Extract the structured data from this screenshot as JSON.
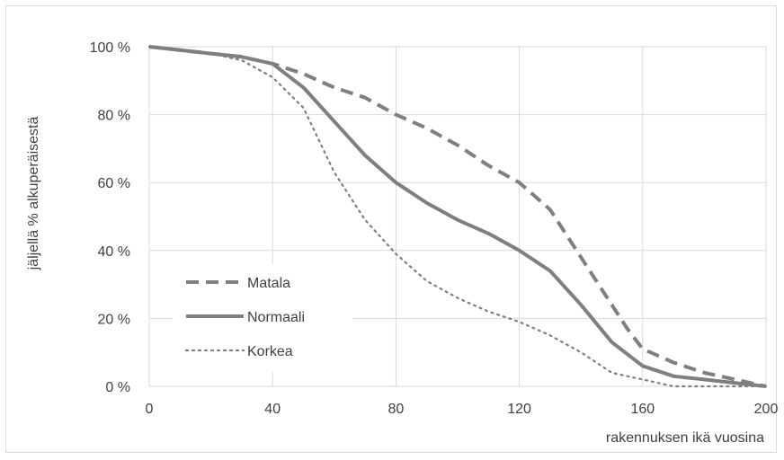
{
  "chart_data": {
    "type": "line",
    "xlabel": "rakennuksen ikä vuosina",
    "ylabel": "jäljellä % alkuperäisestä",
    "xlim": [
      0,
      200
    ],
    "ylim": [
      0,
      100
    ],
    "x_ticks": [
      "0",
      "40",
      "80",
      "120",
      "160",
      "200"
    ],
    "y_ticks": [
      "0 %",
      "20 %",
      "40 %",
      "60 %",
      "80 %",
      "100 %"
    ],
    "grid": true,
    "legend_position": "lower-left",
    "line_color": "#7f7f7f",
    "grid_color": "#d9d9d9",
    "series": [
      {
        "name": "Matala",
        "dash": "dashed",
        "points": [
          [
            0,
            100
          ],
          [
            10,
            99
          ],
          [
            20,
            98
          ],
          [
            30,
            97
          ],
          [
            40,
            95
          ],
          [
            50,
            92
          ],
          [
            60,
            88
          ],
          [
            70,
            85
          ],
          [
            80,
            80
          ],
          [
            90,
            76
          ],
          [
            100,
            71
          ],
          [
            110,
            65
          ],
          [
            120,
            60
          ],
          [
            130,
            52
          ],
          [
            140,
            38
          ],
          [
            150,
            24
          ],
          [
            155,
            17
          ],
          [
            160,
            11
          ],
          [
            170,
            7
          ],
          [
            180,
            4
          ],
          [
            190,
            2
          ],
          [
            200,
            0
          ]
        ]
      },
      {
        "name": "Normaali",
        "dash": "solid",
        "points": [
          [
            0,
            100
          ],
          [
            10,
            99
          ],
          [
            20,
            98
          ],
          [
            30,
            97
          ],
          [
            40,
            95
          ],
          [
            50,
            88
          ],
          [
            60,
            78
          ],
          [
            70,
            68
          ],
          [
            80,
            60
          ],
          [
            90,
            54
          ],
          [
            100,
            49
          ],
          [
            110,
            45
          ],
          [
            120,
            40
          ],
          [
            130,
            34
          ],
          [
            140,
            24
          ],
          [
            150,
            13
          ],
          [
            160,
            6
          ],
          [
            170,
            3
          ],
          [
            180,
            2
          ],
          [
            190,
            1
          ],
          [
            200,
            0
          ]
        ]
      },
      {
        "name": "Korkea",
        "dash": "dotted",
        "points": [
          [
            0,
            100
          ],
          [
            10,
            99
          ],
          [
            20,
            98
          ],
          [
            30,
            96
          ],
          [
            40,
            91
          ],
          [
            50,
            82
          ],
          [
            60,
            63
          ],
          [
            70,
            49
          ],
          [
            80,
            39
          ],
          [
            90,
            31
          ],
          [
            100,
            26
          ],
          [
            110,
            22
          ],
          [
            120,
            19
          ],
          [
            130,
            15
          ],
          [
            140,
            10
          ],
          [
            150,
            4
          ],
          [
            160,
            2
          ],
          [
            170,
            0
          ],
          [
            180,
            0
          ],
          [
            190,
            0
          ],
          [
            200,
            0
          ]
        ]
      }
    ]
  }
}
